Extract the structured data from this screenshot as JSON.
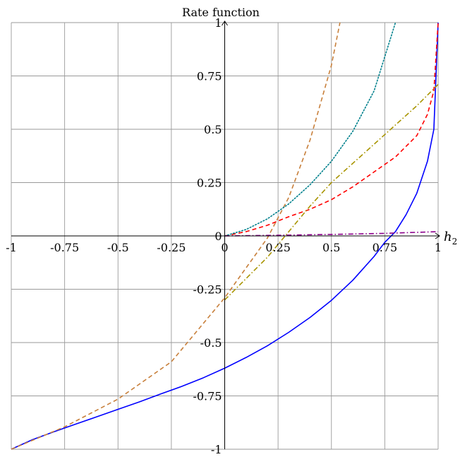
{
  "chart_data": {
    "type": "line",
    "ylabel": "Rate function",
    "xlabel": "h",
    "xlabel_sub": "2",
    "xlim": [
      -1,
      1
    ],
    "ylim": [
      -1,
      1
    ],
    "grid": true,
    "legend": "none",
    "x_ticks": [
      {
        "v": -1,
        "label": "-1"
      },
      {
        "v": -0.75,
        "label": "-0.75"
      },
      {
        "v": -0.5,
        "label": "-0.5"
      },
      {
        "v": -0.25,
        "label": "-0.25"
      },
      {
        "v": 0,
        "label": "0"
      },
      {
        "v": 0.25,
        "label": "0.25"
      },
      {
        "v": 0.5,
        "label": "0.5"
      },
      {
        "v": 0.75,
        "label": "0.75"
      },
      {
        "v": 1,
        "label": "1"
      }
    ],
    "y_ticks": [
      {
        "v": -1,
        "label": "-1"
      },
      {
        "v": -0.75,
        "label": "-0.75"
      },
      {
        "v": -0.5,
        "label": "-0.5"
      },
      {
        "v": -0.25,
        "label": "-0.25"
      },
      {
        "v": 0,
        "label": "0"
      },
      {
        "v": 0.25,
        "label": "0.25"
      },
      {
        "v": 0.5,
        "label": "0.5"
      },
      {
        "v": 0.75,
        "label": "0.75"
      },
      {
        "v": 1,
        "label": "1"
      }
    ],
    "series": [
      {
        "color": "#0000ff",
        "dash": "solid",
        "x": [
          -1,
          -0.9,
          -0.8,
          -0.7,
          -0.6,
          -0.5,
          -0.4,
          -0.3,
          -0.2,
          -0.1,
          0,
          0.1,
          0.2,
          0.3,
          0.4,
          0.5,
          0.6,
          0.7,
          0.75,
          0.8,
          0.85,
          0.9,
          0.95,
          0.98,
          1
        ],
        "y": [
          -1,
          -0.955,
          -0.918,
          -0.883,
          -0.848,
          -0.813,
          -0.778,
          -0.741,
          -0.705,
          -0.665,
          -0.62,
          -0.57,
          -0.515,
          -0.452,
          -0.382,
          -0.302,
          -0.208,
          -0.096,
          -0.03,
          0.02,
          0.1,
          0.2,
          0.35,
          0.5,
          1
        ]
      },
      {
        "color": "#c8803c",
        "dash": "dashed",
        "x": [
          -1,
          -0.75,
          -0.5,
          -0.25,
          0,
          0.1,
          0.2,
          0.3,
          0.4,
          0.5,
          0.54
        ],
        "y": [
          -1,
          -0.895,
          -0.765,
          -0.59,
          -0.29,
          -0.15,
          -0.01,
          0.18,
          0.45,
          0.8,
          1
        ]
      },
      {
        "color": "#ff0000",
        "dash": "dashed",
        "x": [
          0,
          0.1,
          0.2,
          0.3,
          0.4,
          0.5,
          0.6,
          0.7,
          0.8,
          0.9,
          0.95,
          0.98,
          1
        ],
        "y": [
          0,
          0.02,
          0.05,
          0.09,
          0.125,
          0.17,
          0.23,
          0.3,
          0.37,
          0.47,
          0.57,
          0.68,
          1
        ]
      },
      {
        "color": "#00808c",
        "dash": "dotted",
        "x": [
          0,
          0.1,
          0.2,
          0.3,
          0.4,
          0.5,
          0.6,
          0.7,
          0.8
        ],
        "y": [
          0,
          0.03,
          0.08,
          0.15,
          0.24,
          0.35,
          0.49,
          0.68,
          1
        ]
      },
      {
        "color": "#a89400",
        "dash": "dashdot",
        "x": [
          0,
          0.1,
          0.2,
          0.3,
          0.4,
          0.5,
          0.6,
          0.7,
          0.8,
          0.9,
          1
        ],
        "y": [
          -0.3,
          -0.2,
          -0.1,
          0.02,
          0.14,
          0.25,
          0.34,
          0.43,
          0.52,
          0.61,
          0.71
        ]
      },
      {
        "color": "#8b008b",
        "dash": "dashdot",
        "x": [
          0,
          0.25,
          0.5,
          0.75,
          1
        ],
        "y": [
          0,
          0.003,
          0.007,
          0.012,
          0.02
        ]
      }
    ]
  }
}
